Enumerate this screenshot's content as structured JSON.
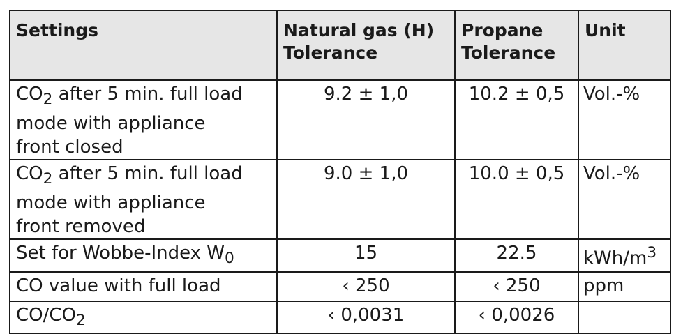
{
  "table": {
    "headers": {
      "settings": "Settings",
      "natural_gas": "Natural gas (H)\nTolerance",
      "propane": "Propane\nTolerance",
      "unit": "Unit"
    },
    "rows": [
      {
        "setting_pre": "CO",
        "setting_sub": "2",
        "setting_post": " after 5 min. full load\nmode with appliance\nfront closed",
        "natural_gas": "9.2 ± 1,0",
        "propane": "10.2 ± 0,5",
        "unit": "Vol.-%"
      },
      {
        "setting_pre": "CO",
        "setting_sub": "2",
        "setting_post": " after 5 min. full load\nmode with appliance\nfront removed",
        "natural_gas": "9.0 ± 1,0",
        "propane": "10.0 ± 0,5",
        "unit": "Vol.-%"
      },
      {
        "setting_pre": "Set for Wobbe-Index W",
        "setting_sub": "0",
        "natural_gas": "15",
        "propane": "22.5",
        "unit_pre": "kWh/m",
        "unit_sup": "3"
      },
      {
        "setting": "CO value with full load",
        "natural_gas": "‹ 250",
        "propane": "‹ 250",
        "unit": "ppm"
      },
      {
        "setting_pre": "CO/CO",
        "setting_sub": "2",
        "natural_gas": "‹ 0,0031",
        "propane": "‹ 0,0026",
        "unit": ""
      }
    ]
  }
}
